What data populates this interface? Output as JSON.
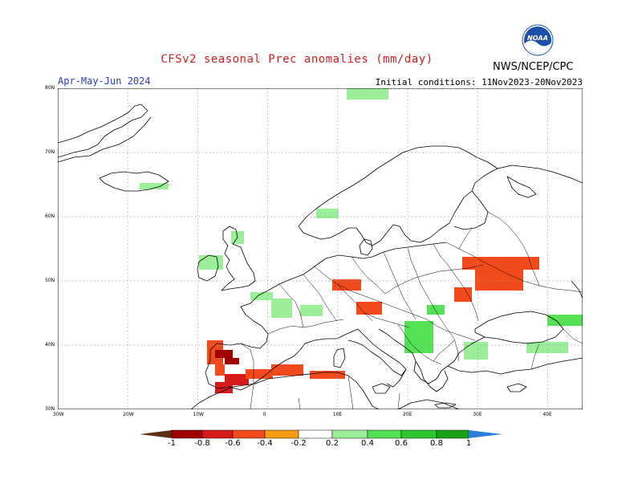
{
  "header": {
    "title": "CFSv2 seasonal Prec anomalies (mm/day)",
    "period": "Apr-May-Jun 2024",
    "initial_conditions": "Initial conditions: 11Nov2023-20Nov2023",
    "credit": "NWS/NCEP/CPC",
    "logo_text": "NOAA"
  },
  "map": {
    "lat_labels": [
      "80N",
      "70N",
      "60N",
      "50N",
      "40N",
      "30N"
    ],
    "lon_labels": [
      "30W",
      "20W",
      "10W",
      "0",
      "10E",
      "20E",
      "30E",
      "40E"
    ],
    "lat_range": [
      30,
      80
    ],
    "lon_range": [
      -30,
      45
    ],
    "grid": "dotted"
  },
  "colorbar": {
    "labels": [
      "-1",
      "-0.8",
      "-0.6",
      "-0.4",
      "-0.2",
      "0.2",
      "0.4",
      "0.6",
      "0.8",
      "1"
    ],
    "colors": [
      "#5c2e14",
      "#a00000",
      "#d61a1a",
      "#f24a1a",
      "#f99c14",
      "#ffffff",
      "#9bef9b",
      "#55e155",
      "#30c830",
      "#18a218",
      "#2b7fd8"
    ]
  },
  "anomalies": {
    "negative": [
      {
        "name": "Portugal",
        "level": -0.4
      },
      {
        "name": "SW Spain",
        "level": -0.8
      },
      {
        "name": "NW Africa",
        "level": -0.6
      },
      {
        "name": "N Algeria",
        "level": -0.4
      },
      {
        "name": "Alps",
        "level": -0.4
      },
      {
        "name": "N Italy",
        "level": -0.4
      },
      {
        "name": "Ukraine / W Russia",
        "level": -0.4
      },
      {
        "name": "Romania",
        "level": -0.4
      }
    ],
    "positive": [
      {
        "name": "Iceland",
        "level": 0.2
      },
      {
        "name": "Ireland",
        "level": 0.2
      },
      {
        "name": "Scotland",
        "level": 0.2
      },
      {
        "name": "Norway",
        "level": 0.2
      },
      {
        "name": "Spitsbergen",
        "level": 0.2
      },
      {
        "name": "N Spain / Pyrenees",
        "level": 0.2
      },
      {
        "name": "Balkans",
        "level": 0.4
      },
      {
        "name": "Turkey",
        "level": 0.2
      },
      {
        "name": "Caucasus",
        "level": 0.4
      }
    ]
  }
}
